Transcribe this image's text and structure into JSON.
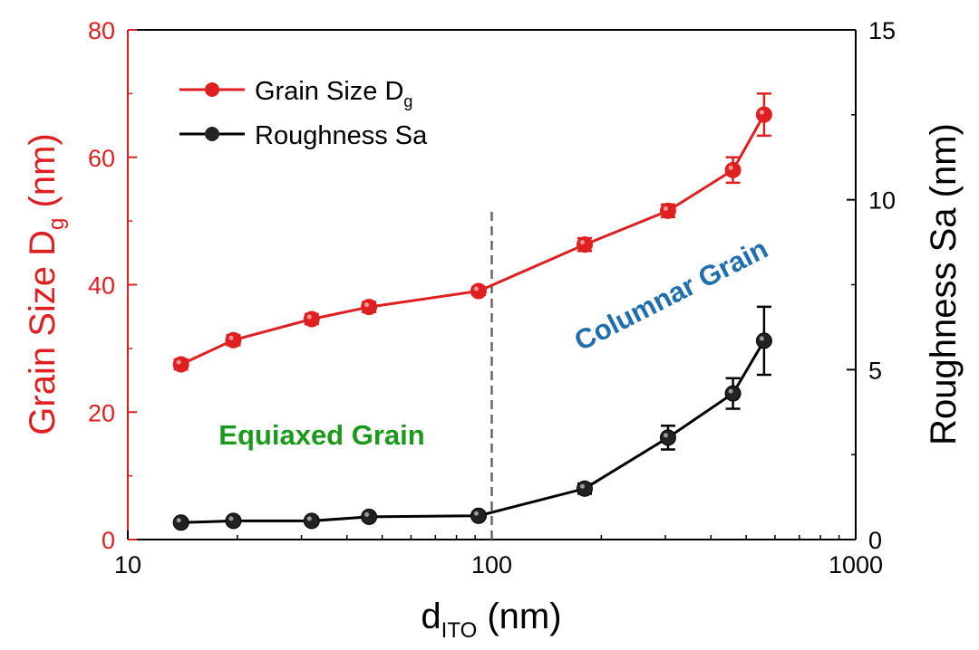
{
  "chart_data": {
    "type": "line",
    "x_axis": {
      "label_main": "d",
      "label_sub": "ITO",
      "label_unit": " (nm)",
      "scale": "log",
      "range": [
        10,
        1000
      ],
      "ticks": [
        10,
        100,
        1000
      ],
      "tick_labels": [
        "10",
        "100",
        "1000"
      ]
    },
    "y_left": {
      "label_main": "Grain Size D",
      "label_sub": "g",
      "label_unit": " (nm)",
      "range": [
        0,
        80
      ],
      "ticks": [
        0,
        20,
        40,
        60,
        80
      ],
      "tick_labels": [
        "0",
        "20",
        "40",
        "60",
        "80"
      ],
      "color": "#e02020"
    },
    "y_right": {
      "label": "Roughness Sa (nm)",
      "range": [
        0,
        15
      ],
      "ticks": [
        0,
        5,
        10,
        15
      ],
      "tick_labels": [
        "0",
        "5",
        "10",
        "15"
      ],
      "color": "#000000"
    },
    "series": [
      {
        "name_main": "Grain Size D",
        "name_sub": "g",
        "axis": "left",
        "color": "#e02020",
        "x": [
          14,
          19.5,
          32,
          46,
          92,
          180,
          305,
          460,
          560
        ],
        "y": [
          27.5,
          31.3,
          34.6,
          36.5,
          39,
          46.3,
          51.6,
          58,
          66.7
        ],
        "err": [
          0.8,
          0.8,
          0.8,
          0.8,
          0.6,
          1.0,
          1.0,
          2.0,
          3.3
        ]
      },
      {
        "name": "Roughness Sa",
        "axis": "right",
        "color": "#000000",
        "x": [
          14,
          19.5,
          32,
          46,
          92,
          180,
          305,
          460,
          560
        ],
        "y": [
          0.5,
          0.55,
          0.55,
          0.67,
          0.7,
          1.5,
          3.0,
          4.3,
          5.85
        ],
        "err": [
          0.05,
          0.05,
          0.05,
          0.08,
          0.08,
          0.15,
          0.35,
          0.45,
          1.0
        ]
      }
    ],
    "divider_x": 100,
    "annotations": [
      {
        "text": "Equiaxed Grain",
        "color": "#1a9a1a"
      },
      {
        "text": "Columnar Grain",
        "color": "#1f6fb0"
      }
    ],
    "legend_position": "top-left"
  }
}
